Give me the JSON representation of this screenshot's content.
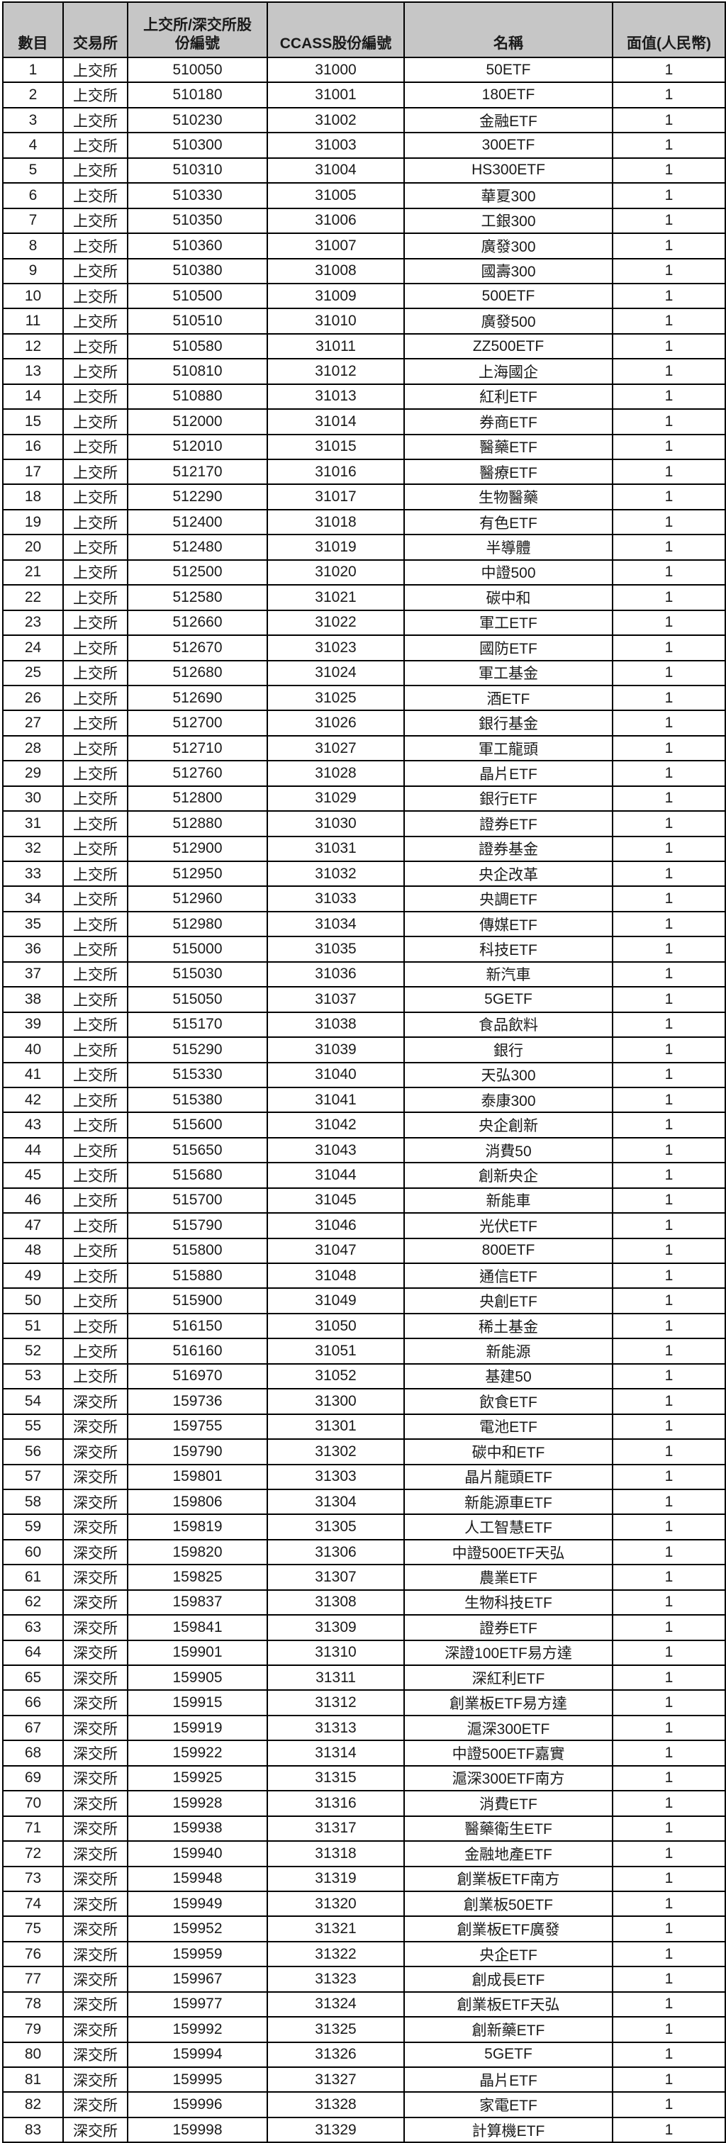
{
  "colors": {
    "header_bg": "#c6c6c6",
    "border": "#000000",
    "text": "#1a1a1a",
    "page_bg": "#ffffff"
  },
  "table": {
    "headers": [
      "數目",
      "交易所",
      "上交所/深交所股\n份編號",
      "CCASS股份編號",
      "名稱",
      "面值(人民幣)"
    ],
    "rows": [
      [
        "1",
        "上交所",
        "510050",
        "31000",
        "50ETF",
        "1"
      ],
      [
        "2",
        "上交所",
        "510180",
        "31001",
        "180ETF",
        "1"
      ],
      [
        "3",
        "上交所",
        "510230",
        "31002",
        "金融ETF",
        "1"
      ],
      [
        "4",
        "上交所",
        "510300",
        "31003",
        "300ETF",
        "1"
      ],
      [
        "5",
        "上交所",
        "510310",
        "31004",
        "HS300ETF",
        "1"
      ],
      [
        "6",
        "上交所",
        "510330",
        "31005",
        "華夏300",
        "1"
      ],
      [
        "7",
        "上交所",
        "510350",
        "31006",
        "工銀300",
        "1"
      ],
      [
        "8",
        "上交所",
        "510360",
        "31007",
        "廣發300",
        "1"
      ],
      [
        "9",
        "上交所",
        "510380",
        "31008",
        "國壽300",
        "1"
      ],
      [
        "10",
        "上交所",
        "510500",
        "31009",
        "500ETF",
        "1"
      ],
      [
        "11",
        "上交所",
        "510510",
        "31010",
        "廣發500",
        "1"
      ],
      [
        "12",
        "上交所",
        "510580",
        "31011",
        "ZZ500ETF",
        "1"
      ],
      [
        "13",
        "上交所",
        "510810",
        "31012",
        "上海國企",
        "1"
      ],
      [
        "14",
        "上交所",
        "510880",
        "31013",
        "紅利ETF",
        "1"
      ],
      [
        "15",
        "上交所",
        "512000",
        "31014",
        "券商ETF",
        "1"
      ],
      [
        "16",
        "上交所",
        "512010",
        "31015",
        "醫藥ETF",
        "1"
      ],
      [
        "17",
        "上交所",
        "512170",
        "31016",
        "醫療ETF",
        "1"
      ],
      [
        "18",
        "上交所",
        "512290",
        "31017",
        "生物醫藥",
        "1"
      ],
      [
        "19",
        "上交所",
        "512400",
        "31018",
        "有色ETF",
        "1"
      ],
      [
        "20",
        "上交所",
        "512480",
        "31019",
        "半導體",
        "1"
      ],
      [
        "21",
        "上交所",
        "512500",
        "31020",
        "中證500",
        "1"
      ],
      [
        "22",
        "上交所",
        "512580",
        "31021",
        "碳中和",
        "1"
      ],
      [
        "23",
        "上交所",
        "512660",
        "31022",
        "軍工ETF",
        "1"
      ],
      [
        "24",
        "上交所",
        "512670",
        "31023",
        "國防ETF",
        "1"
      ],
      [
        "25",
        "上交所",
        "512680",
        "31024",
        "軍工基金",
        "1"
      ],
      [
        "26",
        "上交所",
        "512690",
        "31025",
        "酒ETF",
        "1"
      ],
      [
        "27",
        "上交所",
        "512700",
        "31026",
        "銀行基金",
        "1"
      ],
      [
        "28",
        "上交所",
        "512710",
        "31027",
        "軍工龍頭",
        "1"
      ],
      [
        "29",
        "上交所",
        "512760",
        "31028",
        "晶片ETF",
        "1"
      ],
      [
        "30",
        "上交所",
        "512800",
        "31029",
        "銀行ETF",
        "1"
      ],
      [
        "31",
        "上交所",
        "512880",
        "31030",
        "證券ETF",
        "1"
      ],
      [
        "32",
        "上交所",
        "512900",
        "31031",
        "證券基金",
        "1"
      ],
      [
        "33",
        "上交所",
        "512950",
        "31032",
        "央企改革",
        "1"
      ],
      [
        "34",
        "上交所",
        "512960",
        "31033",
        "央調ETF",
        "1"
      ],
      [
        "35",
        "上交所",
        "512980",
        "31034",
        "傳媒ETF",
        "1"
      ],
      [
        "36",
        "上交所",
        "515000",
        "31035",
        "科技ETF",
        "1"
      ],
      [
        "37",
        "上交所",
        "515030",
        "31036",
        "新汽車",
        "1"
      ],
      [
        "38",
        "上交所",
        "515050",
        "31037",
        "5GETF",
        "1"
      ],
      [
        "39",
        "上交所",
        "515170",
        "31038",
        "食品飲料",
        "1"
      ],
      [
        "40",
        "上交所",
        "515290",
        "31039",
        "銀行",
        "1"
      ],
      [
        "41",
        "上交所",
        "515330",
        "31040",
        "天弘300",
        "1"
      ],
      [
        "42",
        "上交所",
        "515380",
        "31041",
        "泰康300",
        "1"
      ],
      [
        "43",
        "上交所",
        "515600",
        "31042",
        "央企創新",
        "1"
      ],
      [
        "44",
        "上交所",
        "515650",
        "31043",
        "消費50",
        "1"
      ],
      [
        "45",
        "上交所",
        "515680",
        "31044",
        "創新央企",
        "1"
      ],
      [
        "46",
        "上交所",
        "515700",
        "31045",
        "新能車",
        "1"
      ],
      [
        "47",
        "上交所",
        "515790",
        "31046",
        "光伏ETF",
        "1"
      ],
      [
        "48",
        "上交所",
        "515800",
        "31047",
        "800ETF",
        "1"
      ],
      [
        "49",
        "上交所",
        "515880",
        "31048",
        "通信ETF",
        "1"
      ],
      [
        "50",
        "上交所",
        "515900",
        "31049",
        "央創ETF",
        "1"
      ],
      [
        "51",
        "上交所",
        "516150",
        "31050",
        "稀土基金",
        "1"
      ],
      [
        "52",
        "上交所",
        "516160",
        "31051",
        "新能源",
        "1"
      ],
      [
        "53",
        "上交所",
        "516970",
        "31052",
        "基建50",
        "1"
      ],
      [
        "54",
        "深交所",
        "159736",
        "31300",
        "飲食ETF",
        "1"
      ],
      [
        "55",
        "深交所",
        "159755",
        "31301",
        "電池ETF",
        "1"
      ],
      [
        "56",
        "深交所",
        "159790",
        "31302",
        "碳中和ETF",
        "1"
      ],
      [
        "57",
        "深交所",
        "159801",
        "31303",
        "晶片龍頭ETF",
        "1"
      ],
      [
        "58",
        "深交所",
        "159806",
        "31304",
        "新能源車ETF",
        "1"
      ],
      [
        "59",
        "深交所",
        "159819",
        "31305",
        "人工智慧ETF",
        "1"
      ],
      [
        "60",
        "深交所",
        "159820",
        "31306",
        "中證500ETF天弘",
        "1"
      ],
      [
        "61",
        "深交所",
        "159825",
        "31307",
        "農業ETF",
        "1"
      ],
      [
        "62",
        "深交所",
        "159837",
        "31308",
        "生物科技ETF",
        "1"
      ],
      [
        "63",
        "深交所",
        "159841",
        "31309",
        "證券ETF",
        "1"
      ],
      [
        "64",
        "深交所",
        "159901",
        "31310",
        "深證100ETF易方達",
        "1"
      ],
      [
        "65",
        "深交所",
        "159905",
        "31311",
        "深紅利ETF",
        "1"
      ],
      [
        "66",
        "深交所",
        "159915",
        "31312",
        "創業板ETF易方達",
        "1"
      ],
      [
        "67",
        "深交所",
        "159919",
        "31313",
        "滬深300ETF",
        "1"
      ],
      [
        "68",
        "深交所",
        "159922",
        "31314",
        "中證500ETF嘉實",
        "1"
      ],
      [
        "69",
        "深交所",
        "159925",
        "31315",
        "滬深300ETF南方",
        "1"
      ],
      [
        "70",
        "深交所",
        "159928",
        "31316",
        "消費ETF",
        "1"
      ],
      [
        "71",
        "深交所",
        "159938",
        "31317",
        "醫藥衛生ETF",
        "1"
      ],
      [
        "72",
        "深交所",
        "159940",
        "31318",
        "金融地產ETF",
        "1"
      ],
      [
        "73",
        "深交所",
        "159948",
        "31319",
        "創業板ETF南方",
        "1"
      ],
      [
        "74",
        "深交所",
        "159949",
        "31320",
        "創業板50ETF",
        "1"
      ],
      [
        "75",
        "深交所",
        "159952",
        "31321",
        "創業板ETF廣發",
        "1"
      ],
      [
        "76",
        "深交所",
        "159959",
        "31322",
        "央企ETF",
        "1"
      ],
      [
        "77",
        "深交所",
        "159967",
        "31323",
        "創成長ETF",
        "1"
      ],
      [
        "78",
        "深交所",
        "159977",
        "31324",
        "創業板ETF天弘",
        "1"
      ],
      [
        "79",
        "深交所",
        "159992",
        "31325",
        "創新藥ETF",
        "1"
      ],
      [
        "80",
        "深交所",
        "159994",
        "31326",
        "5GETF",
        "1"
      ],
      [
        "81",
        "深交所",
        "159995",
        "31327",
        "晶片ETF",
        "1"
      ],
      [
        "82",
        "深交所",
        "159996",
        "31328",
        "家電ETF",
        "1"
      ],
      [
        "83",
        "深交所",
        "159998",
        "31329",
        "計算機ETF",
        "1"
      ]
    ]
  }
}
